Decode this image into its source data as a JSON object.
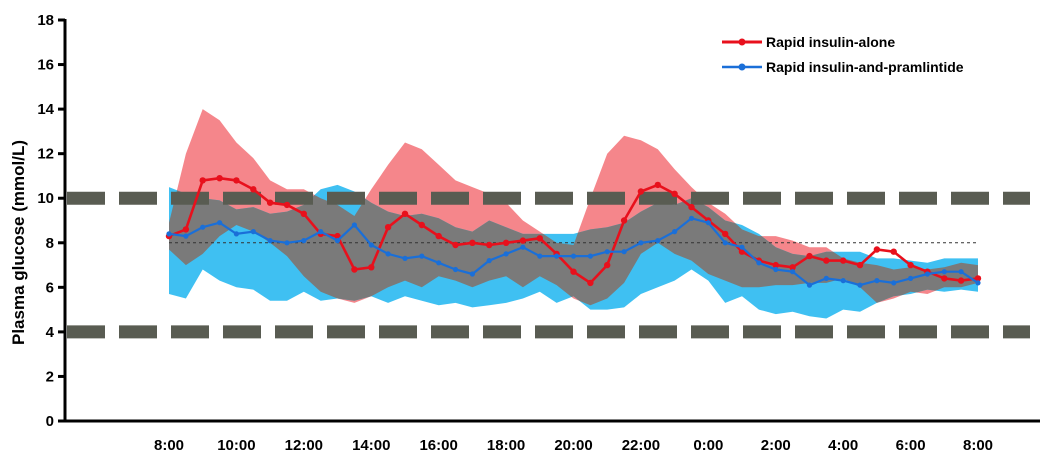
{
  "chart_data": {
    "type": "line",
    "title": "",
    "xlabel": "",
    "ylabel": "Plasma glucose (mmol/L)",
    "ylim": [
      0,
      18
    ],
    "yticks": [
      "0",
      "2",
      "4",
      "6",
      "8",
      "10",
      "12",
      "14",
      "16",
      "18"
    ],
    "xticks": [
      "8:00",
      "10:00",
      "12:00",
      "14:00",
      "16:00",
      "18:00",
      "20:00",
      "22:00",
      "0:00",
      "2:00",
      "4:00",
      "6:00",
      "8:00"
    ],
    "x_hours_from_start": [
      0,
      0.5,
      1,
      1.5,
      2,
      2.5,
      3,
      3.5,
      4,
      4.5,
      5,
      5.5,
      6,
      6.5,
      7,
      7.5,
      8,
      8.5,
      9,
      9.5,
      10,
      10.5,
      11,
      11.5,
      12,
      12.5,
      13,
      13.5,
      14,
      14.5,
      15,
      15.5,
      16,
      16.5,
      17,
      17.5,
      18,
      18.5,
      19,
      19.5,
      20,
      20.5,
      21,
      21.5,
      22,
      22.5,
      23,
      23.5,
      24
    ],
    "series": [
      {
        "name": "Rapid insulin-alone",
        "color": "#e8101c",
        "band_color": "#f5868b",
        "values": [
          8.3,
          8.6,
          10.8,
          10.9,
          10.8,
          10.4,
          9.8,
          9.7,
          9.3,
          8.4,
          8.3,
          6.8,
          6.9,
          8.7,
          9.3,
          8.8,
          8.3,
          7.9,
          8.0,
          7.9,
          8.0,
          8.1,
          8.2,
          7.5,
          6.7,
          6.2,
          7.0,
          9.0,
          10.3,
          10.6,
          10.2,
          9.6,
          9.0,
          8.4,
          7.6,
          7.2,
          7.0,
          6.9,
          7.4,
          7.2,
          7.2,
          7.0,
          7.7,
          7.6,
          7.0,
          6.7,
          6.4,
          6.3,
          6.4
        ],
        "upper": [
          8.9,
          12.0,
          14.0,
          13.5,
          12.5,
          11.8,
          10.8,
          10.4,
          10.4,
          10.0,
          9.7,
          9.2,
          10.4,
          11.5,
          12.5,
          12.2,
          11.5,
          10.8,
          10.5,
          10.2,
          9.8,
          9.0,
          8.5,
          8.0,
          7.9,
          10.0,
          12.0,
          12.8,
          12.6,
          12.2,
          11.3,
          10.5,
          9.8,
          9.3,
          8.6,
          8.3,
          8.3,
          8.1,
          7.8,
          7.8,
          7.3,
          7.1,
          7.0,
          6.8,
          6.9,
          6.8,
          6.9,
          7.1,
          7.0
        ],
        "lower": [
          7.7,
          7.0,
          7.5,
          8.3,
          8.8,
          8.5,
          8.0,
          7.4,
          6.5,
          5.8,
          5.5,
          5.3,
          5.6,
          6.0,
          6.3,
          6.0,
          6.5,
          6.3,
          6.0,
          6.3,
          6.5,
          6.0,
          6.5,
          6.1,
          5.5,
          5.2,
          5.5,
          6.2,
          7.5,
          8.0,
          7.5,
          7.2,
          6.6,
          6.3,
          6.0,
          6.0,
          6.1,
          6.1,
          6.2,
          6.2,
          6.4,
          6.0,
          5.3,
          5.5,
          5.8,
          5.7,
          6.0,
          6.0,
          6.2
        ]
      },
      {
        "name": "Rapid insulin-and-pramlintide",
        "color": "#1a6fd8",
        "band_color": "#3fc0f2",
        "values": [
          8.4,
          8.3,
          8.7,
          8.9,
          8.4,
          8.5,
          8.1,
          8.0,
          8.1,
          8.5,
          8.1,
          8.8,
          7.9,
          7.5,
          7.3,
          7.4,
          7.1,
          6.8,
          6.6,
          7.2,
          7.5,
          7.8,
          7.4,
          7.4,
          7.4,
          7.4,
          7.6,
          7.6,
          8.0,
          8.1,
          8.5,
          9.1,
          8.9,
          8.0,
          7.8,
          7.1,
          6.8,
          6.7,
          6.1,
          6.4,
          6.3,
          6.1,
          6.3,
          6.2,
          6.4,
          6.6,
          6.7,
          6.7,
          6.2
        ],
        "upper": [
          10.5,
          10.2,
          10.0,
          9.9,
          9.5,
          9.6,
          9.3,
          9.4,
          9.7,
          10.4,
          10.6,
          10.3,
          9.8,
          9.4,
          9.2,
          9.3,
          9.1,
          8.7,
          8.5,
          9.0,
          8.7,
          8.4,
          8.4,
          8.4,
          8.4,
          8.6,
          8.7,
          8.9,
          9.4,
          9.8,
          9.7,
          10.0,
          9.6,
          9.0,
          8.8,
          8.4,
          7.8,
          7.5,
          7.4,
          7.6,
          7.6,
          7.6,
          7.3,
          7.3,
          7.2,
          7.1,
          7.3,
          7.3,
          7.3
        ],
        "lower": [
          5.7,
          5.5,
          6.8,
          6.3,
          6.0,
          5.9,
          5.4,
          5.4,
          5.8,
          5.4,
          5.5,
          5.4,
          5.6,
          5.3,
          5.6,
          5.4,
          5.2,
          5.3,
          5.1,
          5.2,
          5.3,
          5.5,
          5.8,
          5.3,
          5.6,
          5.0,
          5.0,
          5.1,
          5.7,
          6.0,
          6.3,
          6.8,
          6.3,
          5.3,
          5.6,
          5.0,
          4.8,
          4.9,
          4.7,
          4.6,
          5.0,
          4.9,
          5.3,
          5.6,
          5.7,
          5.9,
          5.8,
          5.9,
          5.8
        ]
      }
    ],
    "overlap_color": "#7a7a7a",
    "reference_lines": [
      {
        "y": 10,
        "style": "heavy-dash",
        "color": "#595c52"
      },
      {
        "y": 4,
        "style": "heavy-dash",
        "color": "#595c52"
      },
      {
        "y": 8,
        "style": "thin-dash",
        "color": "#333333"
      }
    ],
    "legend_position": "top-right",
    "grid": false
  }
}
